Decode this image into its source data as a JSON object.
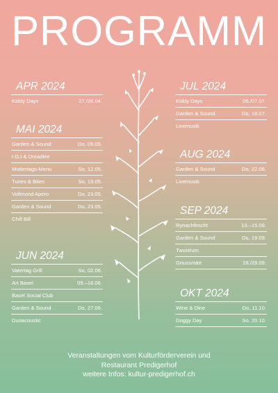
{
  "title": "PROGRAMM",
  "left_months": [
    {
      "month": "APR 2024",
      "rows": [
        {
          "event": "Kiddy Days",
          "date": "27./28.04."
        }
      ]
    },
    {
      "month": "MAI 2024",
      "rows": [
        {
          "event": "Garden & Sound",
          "date": "Do, 09.05."
        },
        {
          "event": "I.G.I & Dreadlee",
          "date": ""
        },
        {
          "event": "Muttertags-Menu",
          "date": "So, 12.05."
        },
        {
          "event": "Tunes & Bites",
          "date": "So, 19.05."
        },
        {
          "event": "Vollmond Apéro",
          "date": "Do, 23.05."
        },
        {
          "event": "Garden & Sound",
          "date": "Do, 23.05."
        },
        {
          "event": "Chill Bill",
          "date": ""
        }
      ]
    },
    {
      "month": "JUN 2024",
      "rows": [
        {
          "event": "Vatertag Grill",
          "date": "So, 02.06."
        },
        {
          "event": "Art Basel",
          "date": "09.–16.06."
        },
        {
          "event": "Basel Social Club",
          "date": ""
        },
        {
          "event": "Garden & Sound",
          "date": "Do, 27.06."
        },
        {
          "event": "Duoacoustic",
          "date": ""
        }
      ]
    }
  ],
  "right_months": [
    {
      "month": "JUL 2024",
      "rows": [
        {
          "event": "Kiddy Days",
          "date": "06./07.07."
        },
        {
          "event": "Garden & Sound",
          "date": "Do, 18.07."
        },
        {
          "event": "Livemusik",
          "date": ""
        }
      ]
    },
    {
      "month": "AUG 2024",
      "rows": [
        {
          "event": "Garden & Sound",
          "date": "Do, 22.08."
        },
        {
          "event": "Livemusik",
          "date": ""
        }
      ]
    },
    {
      "month": "SEP 2024",
      "rows": [
        {
          "event": "Rynachfescht",
          "date": "13.–15.09."
        },
        {
          "event": "Garden & Sound",
          "date": "Do, 19.09."
        },
        {
          "event": "Twostrum",
          "date": ""
        },
        {
          "event": "Gnussmärt",
          "date": "28./29.09."
        }
      ]
    },
    {
      "month": "OKT 2024",
      "rows": [
        {
          "event": "Wine & Dine",
          "date": "Do, 11.10."
        },
        {
          "event": "Doggy Day",
          "date": "So, 20.10."
        }
      ]
    }
  ],
  "footer": {
    "line1": "Veranstaltungen vom Kulturförderverein und",
    "line2": "Restaurant Predigerhof",
    "line3": "weitere Infos: kultur-predigerhof.ch"
  }
}
